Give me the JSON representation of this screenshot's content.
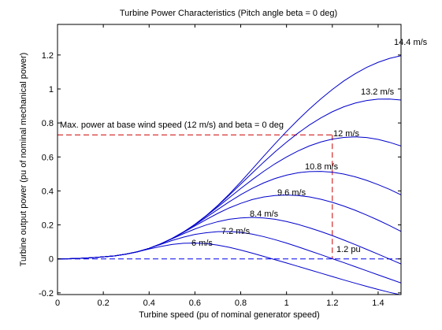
{
  "chart_data": {
    "type": "line",
    "title": "Turbine Power Characteristics (Pitch angle beta = 0 deg)",
    "xlabel": "Turbine speed (pu of nominal generator speed)",
    "ylabel": "Turbine output power (pu of nominal mechanical power)",
    "xlim": [
      0,
      1.5
    ],
    "ylim": [
      -0.21,
      1.38
    ],
    "xticks": [
      0,
      0.2,
      0.4,
      0.6,
      0.8,
      1,
      1.2,
      1.4
    ],
    "xtick_labels": [
      "0",
      "0.2",
      "0.4",
      "0.6",
      "0.8",
      "1",
      "1.2",
      "1.4"
    ],
    "yticks": [
      -0.2,
      0,
      0.2,
      0.4,
      0.6,
      0.8,
      1,
      1.2
    ],
    "ytick_labels": [
      "-0.2",
      "0",
      "0.2",
      "0.4",
      "0.6",
      "0.8",
      "1",
      "1.2"
    ],
    "grid": false,
    "legend": "none",
    "line_color": "#0000cc",
    "annotation_color": "#cc0000",
    "zero_line_color": "#0000ee",
    "series": [
      {
        "name": "6 m/s",
        "x": [
          0.0,
          0.05,
          0.1,
          0.15,
          0.2,
          0.25,
          0.3,
          0.35,
          0.4,
          0.45,
          0.5,
          0.55,
          0.6,
          0.65,
          0.7,
          0.75,
          0.8,
          0.85,
          0.9,
          0.95,
          1.0,
          1.05,
          1.1,
          1.15,
          1.2,
          1.25,
          1.3,
          1.35,
          1.4,
          1.45,
          1.5
        ],
        "y": [
          0.0,
          0.001,
          0.003,
          0.007,
          0.012,
          0.018,
          0.028,
          0.042,
          0.058,
          0.073,
          0.085,
          0.092,
          0.093,
          0.09,
          0.081,
          0.068,
          0.052,
          0.034,
          0.015,
          -0.005,
          -0.024,
          -0.044,
          -0.064,
          -0.084,
          -0.104,
          -0.124,
          -0.143,
          -0.162,
          -0.18,
          -0.197,
          -0.212
        ]
      },
      {
        "name": "7.2 m/s",
        "x": [
          0.0,
          0.05,
          0.1,
          0.15,
          0.2,
          0.25,
          0.3,
          0.35,
          0.4,
          0.45,
          0.5,
          0.55,
          0.6,
          0.65,
          0.7,
          0.75,
          0.8,
          0.85,
          0.9,
          0.95,
          1.0,
          1.05,
          1.1,
          1.15,
          1.2,
          1.25,
          1.3,
          1.35,
          1.4,
          1.45,
          1.5
        ],
        "y": [
          0.0,
          0.001,
          0.003,
          0.007,
          0.012,
          0.018,
          0.028,
          0.042,
          0.062,
          0.085,
          0.108,
          0.128,
          0.144,
          0.154,
          0.16,
          0.161,
          0.156,
          0.146,
          0.131,
          0.113,
          0.093,
          0.071,
          0.048,
          0.025,
          0.001,
          -0.022,
          -0.046,
          -0.07,
          -0.094,
          -0.118,
          -0.142
        ]
      },
      {
        "name": "8.4 m/s",
        "x": [
          0.0,
          0.05,
          0.1,
          0.15,
          0.2,
          0.25,
          0.3,
          0.35,
          0.4,
          0.45,
          0.5,
          0.55,
          0.6,
          0.65,
          0.7,
          0.75,
          0.8,
          0.85,
          0.9,
          0.95,
          1.0,
          1.05,
          1.1,
          1.15,
          1.2,
          1.25,
          1.3,
          1.35,
          1.4,
          1.45,
          1.5
        ],
        "y": [
          0.0,
          0.001,
          0.003,
          0.007,
          0.012,
          0.018,
          0.028,
          0.042,
          0.062,
          0.088,
          0.118,
          0.148,
          0.176,
          0.2,
          0.219,
          0.233,
          0.241,
          0.244,
          0.241,
          0.233,
          0.22,
          0.203,
          0.183,
          0.161,
          0.137,
          0.111,
          0.084,
          0.056,
          0.028,
          -0.001,
          -0.03
        ]
      },
      {
        "name": "9.6 m/s",
        "x": [
          0.0,
          0.05,
          0.1,
          0.15,
          0.2,
          0.25,
          0.3,
          0.35,
          0.4,
          0.45,
          0.5,
          0.55,
          0.6,
          0.65,
          0.7,
          0.75,
          0.8,
          0.85,
          0.9,
          0.95,
          1.0,
          1.05,
          1.1,
          1.15,
          1.2,
          1.25,
          1.3,
          1.35,
          1.4,
          1.45,
          1.5
        ],
        "y": [
          0.0,
          0.001,
          0.003,
          0.007,
          0.012,
          0.018,
          0.028,
          0.042,
          0.062,
          0.088,
          0.12,
          0.156,
          0.194,
          0.232,
          0.268,
          0.3,
          0.327,
          0.349,
          0.364,
          0.373,
          0.376,
          0.373,
          0.365,
          0.351,
          0.333,
          0.311,
          0.286,
          0.258,
          0.228,
          0.196,
          0.162
        ]
      },
      {
        "name": "10.8 m/s",
        "x": [
          0.0,
          0.05,
          0.1,
          0.15,
          0.2,
          0.25,
          0.3,
          0.35,
          0.4,
          0.45,
          0.5,
          0.55,
          0.6,
          0.65,
          0.7,
          0.75,
          0.8,
          0.85,
          0.9,
          0.95,
          1.0,
          1.05,
          1.1,
          1.15,
          1.2,
          1.25,
          1.3,
          1.35,
          1.4,
          1.45,
          1.5
        ],
        "y": [
          0.0,
          0.001,
          0.003,
          0.007,
          0.012,
          0.018,
          0.028,
          0.042,
          0.062,
          0.088,
          0.12,
          0.158,
          0.2,
          0.245,
          0.291,
          0.336,
          0.378,
          0.415,
          0.447,
          0.473,
          0.493,
          0.507,
          0.514,
          0.515,
          0.51,
          0.499,
          0.483,
          0.462,
          0.437,
          0.409,
          0.377
        ]
      },
      {
        "name": "12 m/s",
        "x": [
          0.0,
          0.05,
          0.1,
          0.15,
          0.2,
          0.25,
          0.3,
          0.35,
          0.4,
          0.45,
          0.5,
          0.55,
          0.6,
          0.65,
          0.7,
          0.75,
          0.8,
          0.85,
          0.9,
          0.95,
          1.0,
          1.05,
          1.1,
          1.15,
          1.2,
          1.25,
          1.3,
          1.35,
          1.4,
          1.45,
          1.5
        ],
        "y": [
          0.0,
          0.001,
          0.003,
          0.007,
          0.012,
          0.018,
          0.028,
          0.042,
          0.062,
          0.088,
          0.12,
          0.158,
          0.203,
          0.253,
          0.306,
          0.36,
          0.414,
          0.466,
          0.515,
          0.56,
          0.6,
          0.635,
          0.665,
          0.688,
          0.705,
          0.715,
          0.718,
          0.714,
          0.703,
          0.686,
          0.664
        ]
      },
      {
        "name": "13.2 m/s",
        "x": [
          0.0,
          0.05,
          0.1,
          0.15,
          0.2,
          0.25,
          0.3,
          0.35,
          0.4,
          0.45,
          0.5,
          0.55,
          0.6,
          0.65,
          0.7,
          0.75,
          0.8,
          0.85,
          0.9,
          0.95,
          1.0,
          1.05,
          1.1,
          1.15,
          1.2,
          1.25,
          1.3,
          1.35,
          1.4,
          1.45,
          1.5
        ],
        "y": [
          0.0,
          0.001,
          0.003,
          0.007,
          0.012,
          0.018,
          0.028,
          0.042,
          0.062,
          0.088,
          0.12,
          0.158,
          0.203,
          0.255,
          0.313,
          0.375,
          0.44,
          0.505,
          0.569,
          0.63,
          0.687,
          0.74,
          0.788,
          0.83,
          0.866,
          0.895,
          0.917,
          0.932,
          0.94,
          0.941,
          0.935
        ]
      },
      {
        "name": "14.4 m/s",
        "x": [
          0.0,
          0.05,
          0.1,
          0.15,
          0.2,
          0.25,
          0.3,
          0.35,
          0.4,
          0.45,
          0.5,
          0.55,
          0.6,
          0.65,
          0.7,
          0.75,
          0.8,
          0.85,
          0.9,
          0.95,
          1.0,
          1.05,
          1.1,
          1.15,
          1.2,
          1.25,
          1.3,
          1.35,
          1.4,
          1.45,
          1.5
        ],
        "y": [
          0.0,
          0.001,
          0.003,
          0.007,
          0.012,
          0.018,
          0.028,
          0.042,
          0.062,
          0.088,
          0.12,
          0.158,
          0.203,
          0.255,
          0.315,
          0.381,
          0.453,
          0.528,
          0.604,
          0.678,
          0.75,
          0.818,
          0.882,
          0.942,
          0.997,
          1.047,
          1.09,
          1.127,
          1.157,
          1.18,
          1.196
        ]
      }
    ],
    "curve_labels": [
      "6 m/s",
      "7.2 m/s",
      "8.4 m/s",
      "9.6 m/s",
      "10.8 m/s",
      "12 m/s",
      "13.2 m/s",
      "14.4 m/s"
    ],
    "annotations": {
      "max_power_text": "Max. power at base wind speed (12 m/s) and beta = 0 deg",
      "max_power_value": 0.73,
      "base_speed_text": "1.2 pu",
      "base_speed_value": 1.2
    }
  }
}
